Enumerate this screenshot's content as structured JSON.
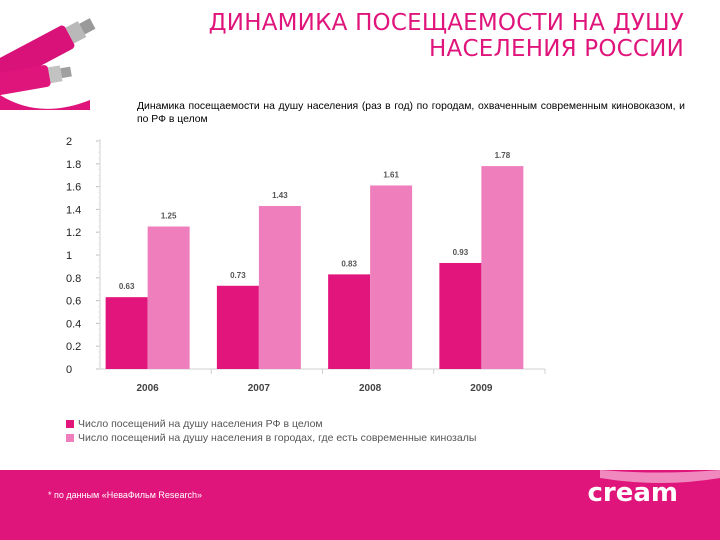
{
  "header": {
    "title_line1": "ДИНАМИКА ПОСЕЩАЕМОСТИ НА ДУШУ",
    "title_line2": "НАСЕЛЕНИЯ РОССИИ",
    "subtitle": "Динамика посещаемости на душу населения (раз в год) по городам, охваченным современным киновоказом, и по РФ в целом"
  },
  "colors": {
    "accent": "#e0157c",
    "series1": "#e2157d",
    "series2": "#ef7fbc"
  },
  "chart_data": {
    "type": "bar",
    "categories": [
      "2006",
      "2007",
      "2008",
      "2009"
    ],
    "series": [
      {
        "name": "Число посещений на душу населения РФ в целом",
        "values": [
          0.63,
          0.73,
          0.83,
          0.93
        ],
        "color": "#e2157d"
      },
      {
        "name": "Число посещений на душу населения в городах, где есть современные кинозалы",
        "values": [
          1.25,
          1.43,
          1.61,
          1.78
        ],
        "color": "#ef7fbc"
      }
    ],
    "y_ticks": [
      "0",
      "0.2",
      "0.4",
      "0.6",
      "0.8",
      "1",
      "1.2",
      "1.4",
      "1.6",
      "1.8",
      "2"
    ],
    "ylim": [
      0,
      2
    ],
    "grid": false,
    "legend_position": "bottom-left"
  },
  "footer": {
    "footnote": "* по данным «НеваФильм Research»",
    "logo": "cream"
  }
}
